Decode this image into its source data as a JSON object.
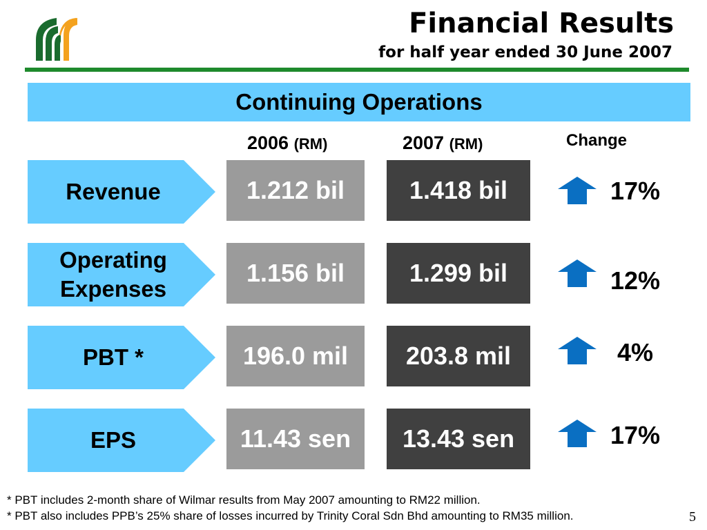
{
  "header": {
    "title": "Financial Results",
    "subtitle": "for half year ended 30 June 2007",
    "logo_icon": "company-logo-icon"
  },
  "section": {
    "title": "Continuing Operations"
  },
  "columns": {
    "year_2006": "2006",
    "year_2007": "2007",
    "unit": "(RM)",
    "change": "Change"
  },
  "rows": [
    {
      "label": "Revenue",
      "value_2006": "1.212 bil",
      "value_2007": "1.418 bil",
      "change": "17%",
      "direction": "up"
    },
    {
      "label": "Operating Expenses",
      "label_line1": "Operating",
      "label_line2": "Expenses",
      "value_2006": "1.156 bil",
      "value_2007": "1.299 bil",
      "change": "12%",
      "direction": "up"
    },
    {
      "label": "PBT *",
      "value_2006": "196.0 mil",
      "value_2007": "203.8 mil",
      "change": "4%",
      "direction": "up"
    },
    {
      "label": "EPS",
      "value_2006": "11.43 sen",
      "value_2007": "13.43 sen",
      "change": "17%",
      "direction": "up"
    }
  ],
  "footnotes": [
    "* PBT includes 2-month share of Wilmar results from May 2007 amounting to RM22 million.",
    "* PBT also includes PPB’s 25% share of losses incurred by Trinity Coral Sdn Bhd amounting to RM35 million."
  ],
  "page_number": "5",
  "colors": {
    "accent_green": "#1e8a2c",
    "banner_blue": "#66ccff",
    "box_2006": "#9b9b9b",
    "box_2007": "#404040",
    "arrow_blue": "#0a6fc2",
    "logo_orange": "#f4a21e"
  }
}
